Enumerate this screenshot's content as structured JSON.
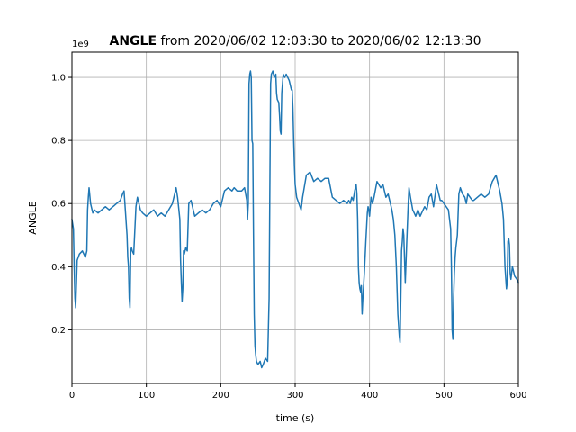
{
  "chart_data": {
    "type": "line",
    "title_bold": "ANGLE",
    "title_rest": " from 2020/06/02 12:03:30 to 2020/06/02 12:13:30",
    "xlabel": "time (s)",
    "ylabel": "ANGLE",
    "y_offset_label": "1e9",
    "xlim": [
      0,
      600
    ],
    "ylim": [
      0.03,
      1.08
    ],
    "xticks": [
      0,
      100,
      200,
      300,
      400,
      500,
      600
    ],
    "xtick_labels": [
      "0",
      "100",
      "200",
      "300",
      "400",
      "500",
      "600"
    ],
    "yticks": [
      0.2,
      0.4,
      0.6,
      0.8,
      1.0
    ],
    "ytick_labels": [
      "0.2",
      "0.4",
      "0.6",
      "0.8",
      "1.0"
    ],
    "grid": true,
    "line_color": "#1f77b4",
    "series": [
      {
        "x": [
          0,
          2,
          3,
          4,
          5,
          7,
          10,
          14,
          18,
          20,
          21,
          22,
          23,
          25,
          28,
          30,
          35,
          40,
          45,
          50,
          55,
          60,
          65,
          68,
          70,
          72,
          74,
          75,
          76,
          77,
          78,
          79,
          80,
          81,
          83,
          86,
          88,
          90,
          92,
          95,
          100,
          105,
          110,
          115,
          120,
          125,
          130,
          135,
          138,
          140,
          142,
          145,
          146,
          147,
          148,
          149,
          150,
          151,
          153,
          155,
          157,
          160,
          163,
          165,
          170,
          175,
          180,
          185,
          190,
          195,
          200,
          205,
          210,
          215,
          218,
          222,
          228,
          232,
          235,
          236,
          237,
          238,
          239,
          240,
          241,
          242,
          243,
          244,
          245,
          246,
          247,
          248,
          250,
          253,
          255,
          257,
          260,
          263,
          265,
          266,
          267,
          268,
          270,
          272,
          274,
          275,
          276,
          278,
          279,
          280,
          281,
          282,
          284,
          286,
          288,
          290,
          292,
          295,
          296,
          297,
          298,
          299,
          300,
          302,
          305,
          308,
          310,
          315,
          320,
          325,
          330,
          335,
          340,
          345,
          350,
          355,
          360,
          365,
          370,
          372,
          374,
          376,
          378,
          380,
          382,
          383,
          384,
          385,
          386,
          387,
          388,
          389,
          390,
          391,
          393,
          395,
          397,
          398,
          399,
          400,
          402,
          404,
          406,
          410,
          415,
          418,
          420,
          422,
          425,
          428,
          430,
          432,
          434,
          436,
          438,
          440,
          441,
          442,
          443,
          444,
          445,
          446,
          448,
          450,
          452,
          453,
          455,
          458,
          460,
          462,
          465,
          468,
          470,
          474,
          477,
          480,
          483,
          486,
          490,
          493,
          495,
          497,
          500,
          503,
          506,
          509,
          510,
          511,
          512,
          513,
          514,
          515,
          516,
          518,
          520,
          522,
          525,
          528,
          530,
          532,
          535,
          538,
          540,
          545,
          550,
          555,
          560,
          565,
          570,
          575,
          578,
          580,
          582,
          584,
          585,
          586,
          587,
          588,
          589,
          590,
          592,
          595,
          598,
          600
        ],
        "y": [
          0.55,
          0.52,
          0.4,
          0.3,
          0.27,
          0.42,
          0.44,
          0.45,
          0.43,
          0.45,
          0.58,
          0.62,
          0.65,
          0.6,
          0.57,
          0.58,
          0.57,
          0.58,
          0.59,
          0.58,
          0.59,
          0.6,
          0.61,
          0.63,
          0.64,
          0.57,
          0.5,
          0.43,
          0.4,
          0.3,
          0.27,
          0.45,
          0.46,
          0.45,
          0.44,
          0.59,
          0.62,
          0.6,
          0.58,
          0.57,
          0.56,
          0.57,
          0.58,
          0.56,
          0.57,
          0.56,
          0.58,
          0.6,
          0.63,
          0.65,
          0.62,
          0.55,
          0.42,
          0.35,
          0.29,
          0.33,
          0.45,
          0.44,
          0.46,
          0.45,
          0.6,
          0.61,
          0.58,
          0.56,
          0.57,
          0.58,
          0.57,
          0.58,
          0.6,
          0.61,
          0.59,
          0.64,
          0.65,
          0.64,
          0.65,
          0.64,
          0.64,
          0.65,
          0.61,
          0.55,
          0.6,
          0.98,
          1.01,
          1.02,
          1.0,
          0.8,
          0.79,
          0.5,
          0.25,
          0.15,
          0.12,
          0.1,
          0.09,
          0.1,
          0.08,
          0.09,
          0.11,
          0.1,
          0.3,
          0.65,
          0.98,
          1.01,
          1.02,
          1.0,
          1.01,
          0.95,
          0.93,
          0.92,
          0.88,
          0.83,
          0.82,
          0.95,
          1.01,
          1.0,
          1.01,
          1.0,
          0.99,
          0.96,
          0.96,
          0.9,
          0.8,
          0.72,
          0.66,
          0.62,
          0.6,
          0.58,
          0.62,
          0.69,
          0.7,
          0.67,
          0.68,
          0.67,
          0.68,
          0.68,
          0.62,
          0.61,
          0.6,
          0.61,
          0.6,
          0.61,
          0.6,
          0.62,
          0.61,
          0.64,
          0.66,
          0.63,
          0.55,
          0.4,
          0.35,
          0.33,
          0.32,
          0.34,
          0.25,
          0.3,
          0.38,
          0.48,
          0.57,
          0.59,
          0.58,
          0.56,
          0.62,
          0.6,
          0.62,
          0.67,
          0.65,
          0.66,
          0.64,
          0.62,
          0.63,
          0.6,
          0.58,
          0.55,
          0.5,
          0.4,
          0.25,
          0.18,
          0.16,
          0.3,
          0.45,
          0.48,
          0.52,
          0.5,
          0.35,
          0.48,
          0.6,
          0.65,
          0.62,
          0.58,
          0.57,
          0.56,
          0.58,
          0.56,
          0.57,
          0.59,
          0.58,
          0.62,
          0.63,
          0.59,
          0.66,
          0.63,
          0.61,
          0.61,
          0.6,
          0.59,
          0.58,
          0.52,
          0.4,
          0.2,
          0.17,
          0.3,
          0.38,
          0.43,
          0.46,
          0.5,
          0.63,
          0.65,
          0.63,
          0.62,
          0.6,
          0.63,
          0.62,
          0.61,
          0.61,
          0.62,
          0.63,
          0.62,
          0.63,
          0.67,
          0.69,
          0.64,
          0.6,
          0.55,
          0.4,
          0.33,
          0.35,
          0.48,
          0.49,
          0.47,
          0.38,
          0.36,
          0.4,
          0.37,
          0.36,
          0.35
        ]
      }
    ]
  }
}
